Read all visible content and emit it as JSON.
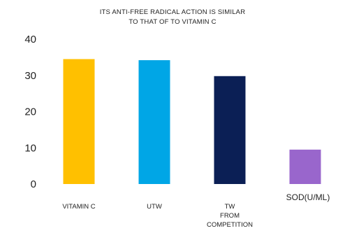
{
  "chart_data": {
    "type": "bar",
    "title_lines": [
      "ITS ANTI-FREE RADICAL ACTION IS SIMILAR",
      "TO THAT OF TO VITAMIN C"
    ],
    "categories": [
      "VITAMIN C",
      "UTW",
      "TW FROM COMPETITION",
      "SOD(U/ML)"
    ],
    "category_lines": [
      [
        "VITAMIN C"
      ],
      [
        "UTW"
      ],
      [
        "TW",
        "FROM",
        "COMPETITION"
      ],
      [
        "SOD(U/ML)"
      ]
    ],
    "values": [
      34.5,
      34.2,
      29.8,
      9.5
    ],
    "colors": [
      "#FFC000",
      "#00A6E6",
      "#0B1F55",
      "#9966CC"
    ],
    "ylim": [
      0,
      40
    ],
    "yticks": [
      0,
      10,
      20,
      30,
      40
    ],
    "ytick_labels": [
      "0",
      "10",
      "20",
      "30",
      "40"
    ],
    "grid": false,
    "legend": "none"
  }
}
